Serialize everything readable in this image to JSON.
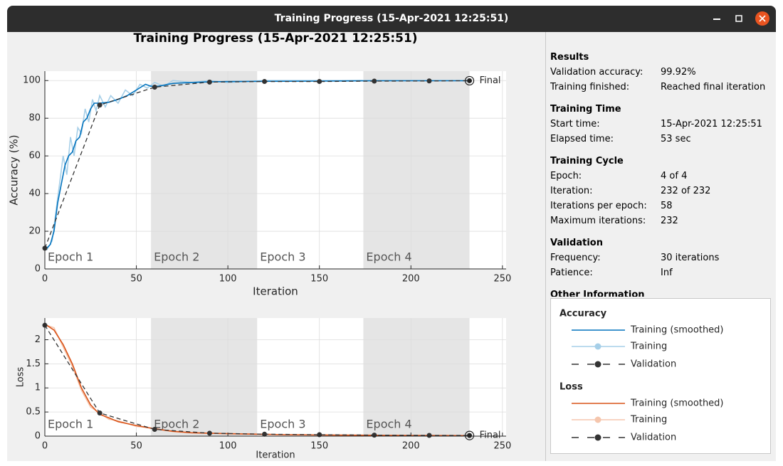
{
  "window": {
    "title": "Training Progress (15-Apr-2021 12:25:51)"
  },
  "figure_title": "Training Progress (15-Apr-2021 12:25:51)",
  "chart_data": [
    {
      "type": "line",
      "xlabel": "Iteration",
      "ylabel": "Accuracy (%)",
      "legend_title": "Accuracy",
      "xlim": [
        0,
        252
      ],
      "ylim": [
        0,
        105
      ],
      "xticks": [
        0,
        50,
        100,
        150,
        200,
        250
      ],
      "yticks": [
        0,
        20,
        40,
        60,
        80,
        100
      ],
      "grid": true,
      "epochs": [
        {
          "label": "Epoch 1",
          "start": 0,
          "end": 58,
          "shaded": false
        },
        {
          "label": "Epoch 2",
          "start": 58,
          "end": 116,
          "shaded": true
        },
        {
          "label": "Epoch 3",
          "start": 116,
          "end": 174,
          "shaded": false
        },
        {
          "label": "Epoch 4",
          "start": 174,
          "end": 232,
          "shaded": true
        }
      ],
      "series": [
        {
          "name": "Training",
          "color": "#a6cfe8",
          "dashed": false,
          "markers": false,
          "legend_marker": true,
          "x": [
            1,
            4,
            6,
            8,
            10,
            12,
            14,
            16,
            18,
            20,
            22,
            24,
            26,
            28,
            30,
            33,
            36,
            40,
            44,
            48,
            52,
            56,
            60,
            65,
            70,
            80,
            90,
            100,
            120,
            150,
            180,
            210,
            232
          ],
          "values": [
            10,
            15,
            30,
            45,
            60,
            50,
            70,
            60,
            75,
            72,
            85,
            78,
            90,
            84,
            92,
            86,
            92,
            88,
            95,
            92,
            98,
            96,
            99,
            97,
            100,
            99,
            100,
            99,
            100,
            100,
            100,
            100,
            100
          ]
        },
        {
          "name": "Training (smoothed)",
          "color": "#0072bd",
          "dashed": false,
          "markers": false,
          "legend_marker": false,
          "x": [
            1,
            3,
            5,
            7,
            9,
            11,
            13,
            15,
            17,
            19,
            21,
            23,
            25,
            27,
            30,
            35,
            40,
            45,
            50,
            55,
            58,
            62,
            70,
            80,
            90,
            100,
            120,
            150,
            180,
            210,
            232
          ],
          "values": [
            11,
            13,
            20,
            35,
            45,
            55,
            60,
            62,
            68,
            70,
            78,
            80,
            85,
            88,
            88,
            88.5,
            90,
            92,
            95,
            98,
            97,
            97,
            98.5,
            99,
            99.3,
            99.5,
            99.6,
            99.7,
            99.9,
            99.9,
            99.9
          ]
        },
        {
          "name": "Validation",
          "color": "#333333",
          "dashed": true,
          "markers": true,
          "legend_marker": true,
          "x": [
            0,
            30,
            60,
            90,
            120,
            150,
            180,
            210,
            232
          ],
          "values": [
            11,
            87,
            96.5,
            99.2,
            99.5,
            99.5,
            99.7,
            99.8,
            99.92
          ]
        }
      ],
      "final": {
        "label": "Final",
        "x": 232,
        "value": 99.92
      }
    },
    {
      "type": "line",
      "xlabel": "Iteration",
      "ylabel": "Loss",
      "legend_title": "Loss",
      "xlim": [
        0,
        252
      ],
      "ylim": [
        0,
        2.45
      ],
      "xticks": [
        0,
        50,
        100,
        150,
        200,
        250
      ],
      "yticks": [
        0,
        0.5,
        1,
        1.5,
        2
      ],
      "grid": true,
      "epochs": [
        {
          "label": "Epoch 1",
          "start": 0,
          "end": 58,
          "shaded": false
        },
        {
          "label": "Epoch 2",
          "start": 58,
          "end": 116,
          "shaded": true
        },
        {
          "label": "Epoch 3",
          "start": 116,
          "end": 174,
          "shaded": false
        },
        {
          "label": "Epoch 4",
          "start": 174,
          "end": 232,
          "shaded": true
        }
      ],
      "series": [
        {
          "name": "Training",
          "color": "#f5c6ad",
          "dashed": false,
          "markers": false,
          "legend_marker": true,
          "x": [
            1,
            5,
            10,
            15,
            20,
            25,
            30,
            35,
            40,
            50,
            60,
            70,
            80,
            100,
            130,
            160,
            200,
            232
          ],
          "values": [
            2.3,
            2.25,
            1.85,
            1.45,
            0.95,
            0.6,
            0.48,
            0.35,
            0.32,
            0.2,
            0.16,
            0.09,
            0.07,
            0.05,
            0.03,
            0.02,
            0.01,
            0.01
          ]
        },
        {
          "name": "Training (smoothed)",
          "color": "#d95319",
          "dashed": false,
          "markers": false,
          "legend_marker": false,
          "x": [
            1,
            5,
            10,
            15,
            20,
            25,
            30,
            35,
            40,
            50,
            60,
            70,
            80,
            100,
            130,
            160,
            200,
            232
          ],
          "values": [
            2.3,
            2.2,
            1.9,
            1.5,
            1.0,
            0.65,
            0.45,
            0.38,
            0.3,
            0.22,
            0.15,
            0.1,
            0.07,
            0.05,
            0.03,
            0.02,
            0.015,
            0.01
          ]
        },
        {
          "name": "Validation",
          "color": "#333333",
          "dashed": true,
          "markers": true,
          "legend_marker": true,
          "x": [
            0,
            30,
            60,
            90,
            120,
            150,
            180,
            210,
            232
          ],
          "values": [
            2.3,
            0.48,
            0.14,
            0.06,
            0.04,
            0.03,
            0.02,
            0.015,
            0.013
          ]
        }
      ],
      "final": {
        "label": "Final",
        "x": 232,
        "value": 0.013
      }
    }
  ],
  "info_panel": {
    "sections": [
      {
        "heading": "Results",
        "rows": [
          [
            "Validation accuracy:",
            "99.92%"
          ],
          [
            "Training finished:",
            "Reached final iteration"
          ]
        ]
      },
      {
        "heading": "Training Time",
        "rows": [
          [
            "Start time:",
            "15-Apr-2021 12:25:51"
          ],
          [
            "Elapsed time:",
            "53 sec"
          ]
        ]
      },
      {
        "heading": "Training Cycle",
        "rows": [
          [
            "Epoch:",
            "4 of 4"
          ],
          [
            "Iteration:",
            "232 of 232"
          ],
          [
            "Iterations per epoch:",
            "58"
          ],
          [
            "Maximum iterations:",
            "232"
          ]
        ]
      },
      {
        "heading": "Validation",
        "rows": [
          [
            "Frequency:",
            "30 iterations"
          ],
          [
            "Patience:",
            "Inf"
          ]
        ]
      },
      {
        "heading": "Other Information",
        "rows": []
      }
    ]
  }
}
